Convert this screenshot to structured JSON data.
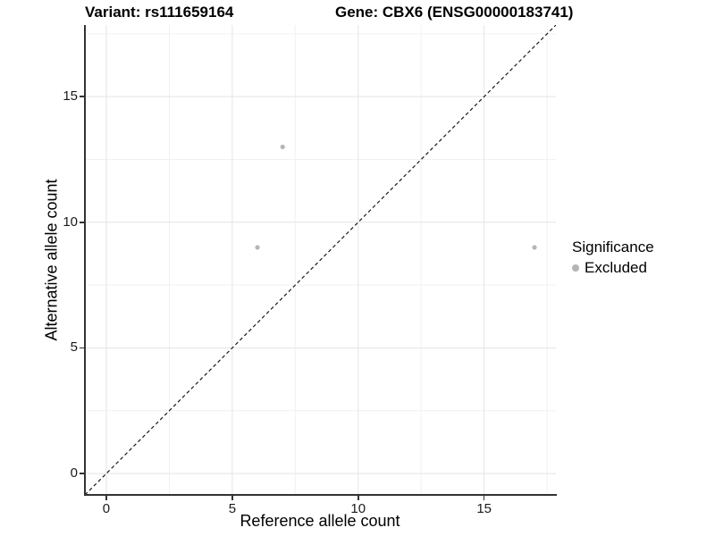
{
  "header": {
    "variant_title": "Variant: rs111659164",
    "gene_title": "Gene: CBX6 (ENSG00000183741)"
  },
  "chart_data": {
    "type": "scatter",
    "title_left": "Variant: rs111659164",
    "title_right": "Gene: CBX6 (ENSG00000183741)",
    "xlabel": "Reference allele count",
    "ylabel": "Alternative allele count",
    "xlim": [
      -0.85,
      17.85
    ],
    "ylim": [
      -0.85,
      17.85
    ],
    "x_ticks": [
      0,
      5,
      10,
      15
    ],
    "y_ticks": [
      0,
      5,
      10,
      15
    ],
    "x_minor_ticks": [
      2.5,
      7.5,
      12.5,
      17.5
    ],
    "y_minor_ticks": [
      2.5,
      7.5,
      12.5,
      17.5
    ],
    "grid": "major+minor",
    "identity_line": {
      "style": "dashed",
      "from": -0.85,
      "to": 17.85
    },
    "series": [
      {
        "name": "Excluded",
        "color": "#b5b5b5",
        "points": [
          {
            "x": 7,
            "y": 13
          },
          {
            "x": 6,
            "y": 9
          },
          {
            "x": 17,
            "y": 9
          }
        ]
      }
    ],
    "legend": {
      "title": "Significance",
      "position": "right",
      "items": [
        {
          "label": "Excluded",
          "color": "#b5b5b5"
        }
      ]
    },
    "colors": {
      "grid_major": "#e4e4e4",
      "grid_minor": "#f1f1f1",
      "axis": "#333333",
      "identity_line": "#1a1a1a",
      "point": "#b5b5b5"
    }
  }
}
